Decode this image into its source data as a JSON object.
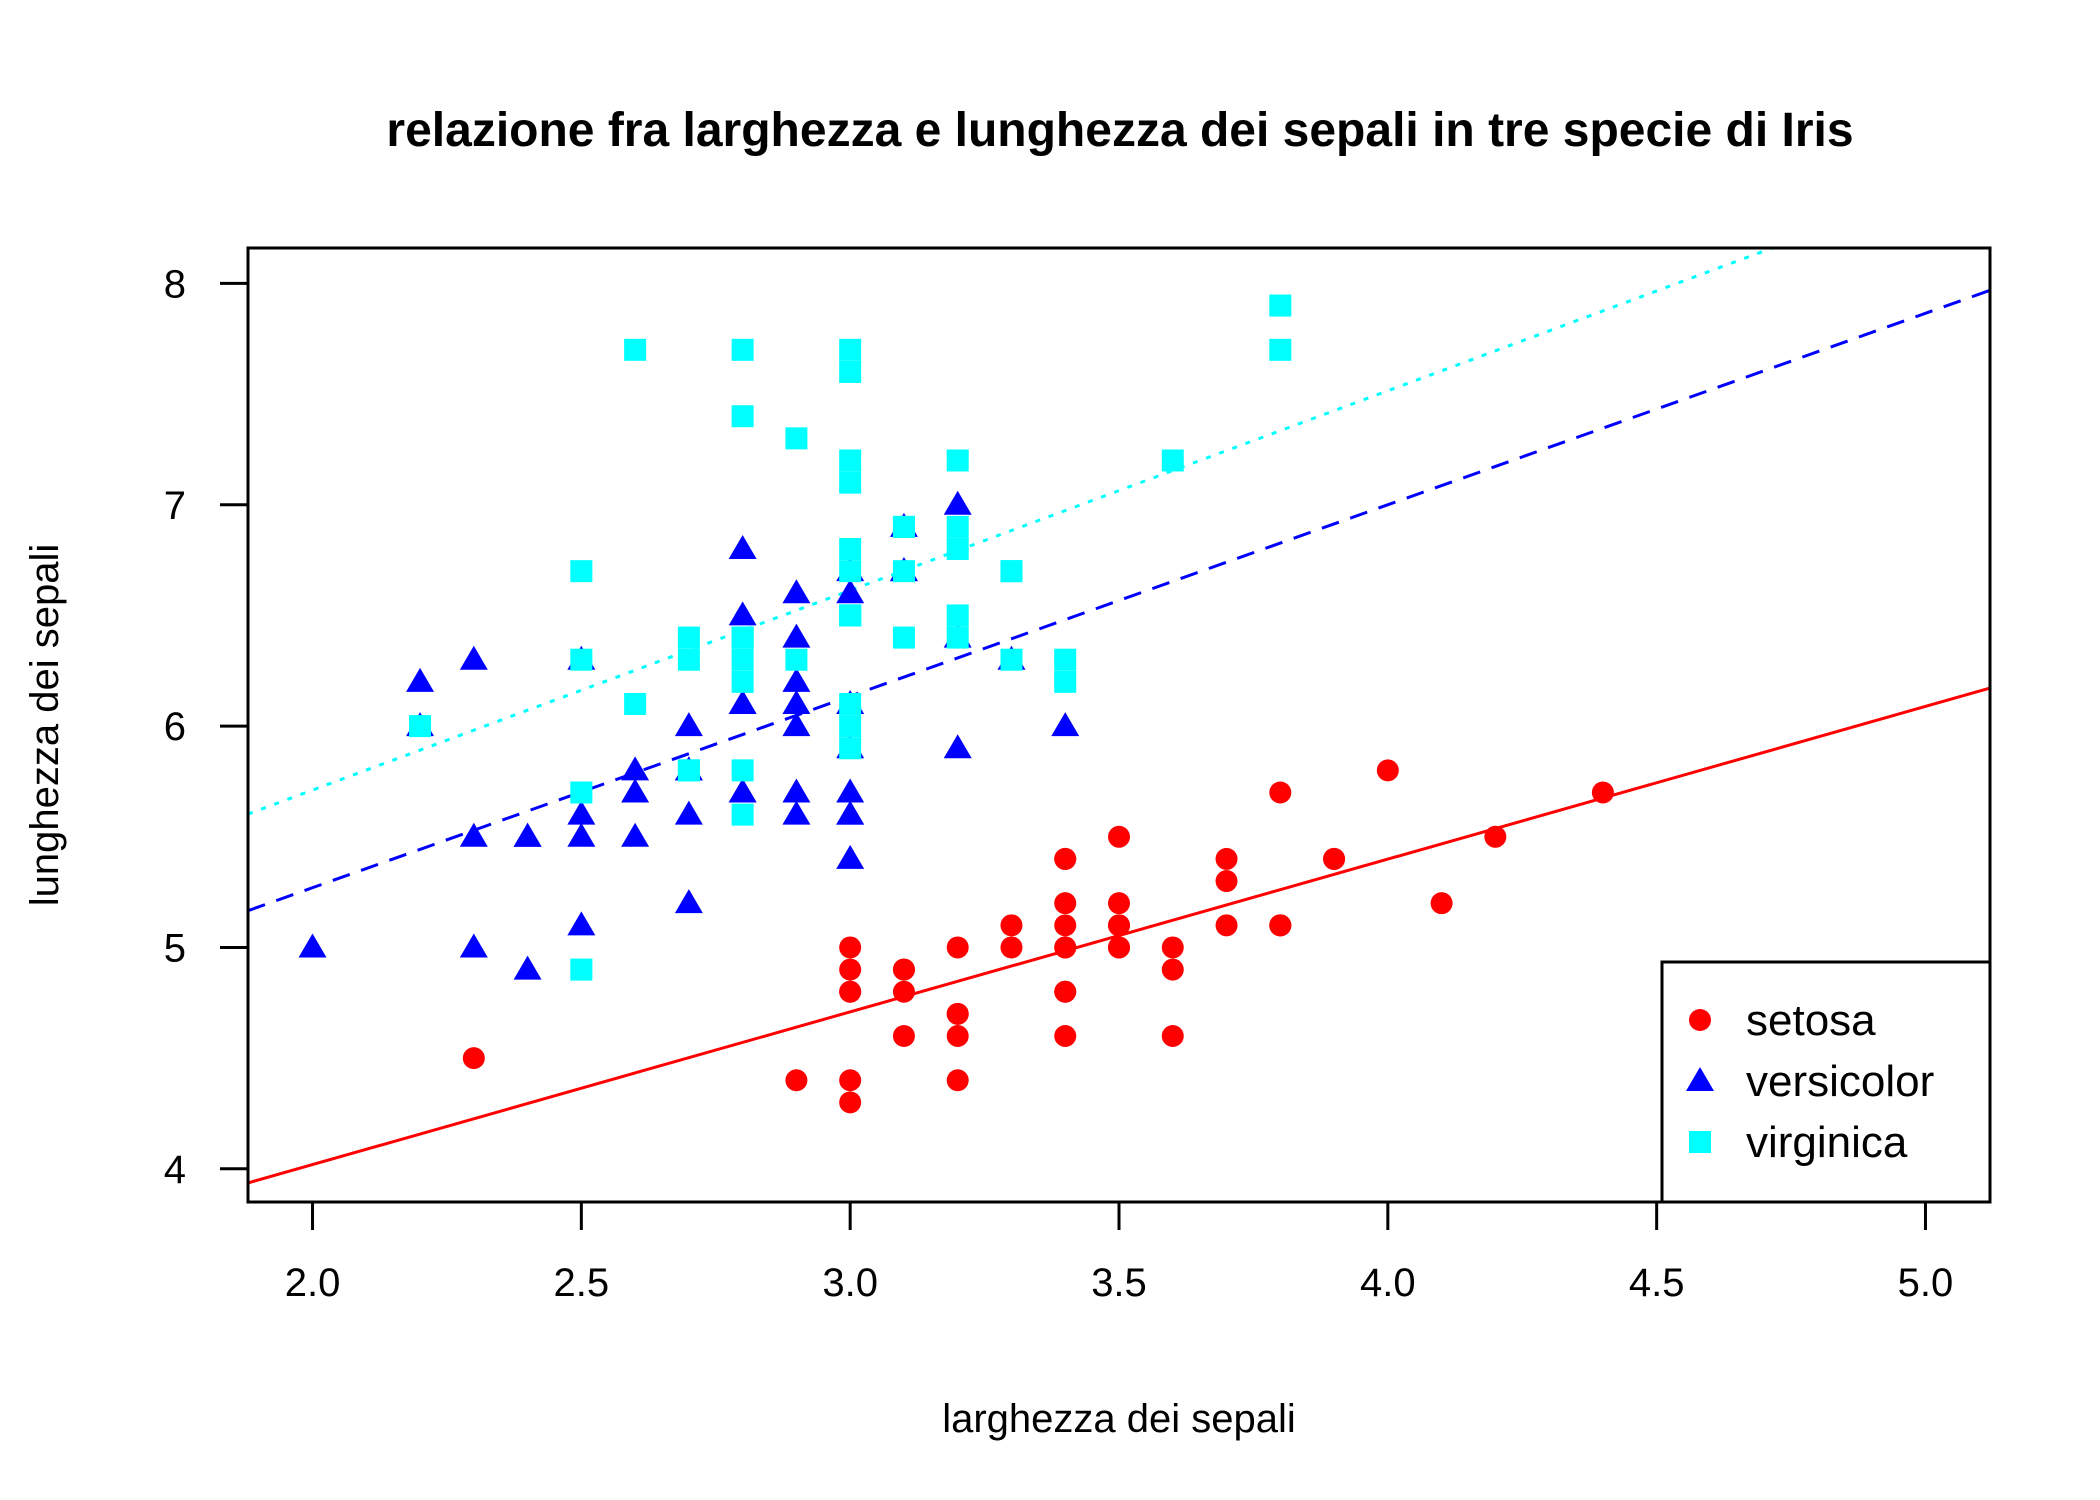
{
  "chart_data": {
    "type": "scatter",
    "title": "relazione fra larghezza e lunghezza dei sepali in tre specie di Iris",
    "xlabel": "larghezza dei sepali",
    "ylabel": "lunghezza dei sepali",
    "xlim": [
      1.88,
      5.12
    ],
    "ylim": [
      3.85,
      8.16
    ],
    "x_ticks": [
      "2.0",
      "2.5",
      "3.0",
      "3.5",
      "4.0",
      "4.5",
      "5.0"
    ],
    "y_ticks": [
      "4",
      "5",
      "6",
      "7",
      "8"
    ],
    "legend_position": "bottom-right",
    "series": [
      {
        "name": "setosa",
        "color": "#ff0000",
        "marker": "circle",
        "points": [
          [
            3.5,
            5.1
          ],
          [
            3.0,
            4.9
          ],
          [
            3.2,
            4.7
          ],
          [
            3.1,
            4.6
          ],
          [
            3.6,
            5.0
          ],
          [
            3.9,
            5.4
          ],
          [
            3.4,
            4.6
          ],
          [
            3.4,
            5.0
          ],
          [
            2.9,
            4.4
          ],
          [
            3.1,
            4.9
          ],
          [
            3.7,
            5.4
          ],
          [
            3.4,
            4.8
          ],
          [
            3.0,
            4.8
          ],
          [
            3.0,
            4.3
          ],
          [
            4.0,
            5.8
          ],
          [
            4.4,
            5.7
          ],
          [
            3.9,
            5.4
          ],
          [
            3.5,
            5.1
          ],
          [
            3.8,
            5.7
          ],
          [
            3.8,
            5.1
          ],
          [
            3.4,
            5.4
          ],
          [
            3.7,
            5.1
          ],
          [
            3.6,
            4.6
          ],
          [
            3.3,
            5.1
          ],
          [
            3.4,
            4.8
          ],
          [
            3.0,
            5.0
          ],
          [
            3.4,
            5.0
          ],
          [
            3.5,
            5.2
          ],
          [
            3.4,
            5.2
          ],
          [
            3.2,
            4.7
          ],
          [
            3.1,
            4.8
          ],
          [
            3.4,
            5.4
          ],
          [
            4.1,
            5.2
          ],
          [
            4.2,
            5.5
          ],
          [
            3.1,
            4.9
          ],
          [
            3.2,
            5.0
          ],
          [
            3.5,
            5.5
          ],
          [
            3.6,
            4.9
          ],
          [
            3.0,
            4.4
          ],
          [
            3.4,
            5.1
          ],
          [
            3.5,
            5.0
          ],
          [
            2.3,
            4.5
          ],
          [
            3.2,
            4.4
          ],
          [
            3.5,
            5.0
          ],
          [
            3.8,
            5.1
          ],
          [
            3.0,
            4.8
          ],
          [
            3.8,
            5.1
          ],
          [
            3.2,
            4.6
          ],
          [
            3.7,
            5.3
          ],
          [
            3.3,
            5.0
          ]
        ],
        "regression": {
          "intercept": 2.639,
          "slope": 0.69,
          "style": "solid"
        }
      },
      {
        "name": "versicolor",
        "color": "#0000ff",
        "marker": "triangle",
        "points": [
          [
            3.2,
            7.0
          ],
          [
            3.2,
            6.4
          ],
          [
            3.1,
            6.9
          ],
          [
            2.3,
            5.5
          ],
          [
            2.8,
            6.5
          ],
          [
            2.8,
            5.7
          ],
          [
            3.3,
            6.3
          ],
          [
            2.4,
            4.9
          ],
          [
            2.9,
            6.6
          ],
          [
            2.7,
            5.2
          ],
          [
            2.0,
            5.0
          ],
          [
            3.0,
            5.9
          ],
          [
            2.2,
            6.0
          ],
          [
            2.9,
            6.1
          ],
          [
            2.9,
            5.6
          ],
          [
            3.1,
            6.7
          ],
          [
            3.0,
            5.6
          ],
          [
            2.7,
            5.8
          ],
          [
            2.2,
            6.2
          ],
          [
            2.5,
            5.6
          ],
          [
            3.2,
            5.9
          ],
          [
            2.8,
            6.1
          ],
          [
            2.5,
            6.3
          ],
          [
            2.8,
            6.1
          ],
          [
            2.9,
            6.4
          ],
          [
            3.0,
            6.6
          ],
          [
            2.8,
            6.8
          ],
          [
            3.0,
            6.7
          ],
          [
            2.9,
            6.0
          ],
          [
            2.6,
            5.7
          ],
          [
            2.4,
            5.5
          ],
          [
            2.4,
            5.5
          ],
          [
            2.7,
            5.8
          ],
          [
            2.7,
            6.0
          ],
          [
            3.0,
            5.4
          ],
          [
            3.4,
            6.0
          ],
          [
            3.1,
            6.7
          ],
          [
            2.3,
            6.3
          ],
          [
            3.0,
            5.6
          ],
          [
            2.5,
            5.5
          ],
          [
            2.6,
            5.5
          ],
          [
            3.0,
            6.1
          ],
          [
            2.6,
            5.8
          ],
          [
            2.3,
            5.0
          ],
          [
            2.7,
            5.6
          ],
          [
            3.0,
            5.7
          ],
          [
            2.9,
            5.7
          ],
          [
            2.9,
            6.2
          ],
          [
            2.5,
            5.1
          ],
          [
            2.8,
            5.7
          ]
        ],
        "regression": {
          "intercept": 3.54,
          "slope": 0.865,
          "style": "dashed"
        }
      },
      {
        "name": "virginica",
        "color": "#00ffff",
        "marker": "square",
        "points": [
          [
            3.3,
            6.3
          ],
          [
            2.7,
            5.8
          ],
          [
            3.0,
            7.1
          ],
          [
            2.9,
            6.3
          ],
          [
            3.0,
            6.5
          ],
          [
            3.0,
            7.6
          ],
          [
            2.5,
            4.9
          ],
          [
            2.9,
            7.3
          ],
          [
            2.5,
            6.7
          ],
          [
            3.6,
            7.2
          ],
          [
            3.2,
            6.5
          ],
          [
            2.7,
            6.4
          ],
          [
            3.0,
            6.8
          ],
          [
            2.5,
            5.7
          ],
          [
            2.8,
            5.8
          ],
          [
            3.2,
            6.4
          ],
          [
            3.0,
            6.5
          ],
          [
            3.8,
            7.7
          ],
          [
            2.6,
            7.7
          ],
          [
            2.2,
            6.0
          ],
          [
            3.2,
            6.9
          ],
          [
            2.8,
            5.6
          ],
          [
            2.8,
            7.7
          ],
          [
            2.7,
            6.3
          ],
          [
            3.3,
            6.7
          ],
          [
            3.2,
            7.2
          ],
          [
            2.8,
            6.2
          ],
          [
            3.0,
            6.1
          ],
          [
            2.8,
            6.4
          ],
          [
            3.0,
            7.2
          ],
          [
            2.8,
            7.4
          ],
          [
            3.8,
            7.9
          ],
          [
            2.8,
            6.4
          ],
          [
            2.8,
            6.3
          ],
          [
            2.6,
            6.1
          ],
          [
            3.0,
            7.7
          ],
          [
            3.4,
            6.3
          ],
          [
            3.1,
            6.4
          ],
          [
            3.0,
            6.0
          ],
          [
            3.1,
            6.9
          ],
          [
            3.1,
            6.7
          ],
          [
            3.1,
            6.9
          ],
          [
            2.7,
            5.8
          ],
          [
            3.2,
            6.8
          ],
          [
            3.3,
            6.7
          ],
          [
            3.0,
            6.7
          ],
          [
            2.5,
            6.3
          ],
          [
            3.0,
            6.5
          ],
          [
            3.4,
            6.2
          ],
          [
            3.0,
            5.9
          ]
        ],
        "regression": {
          "intercept": 3.907,
          "slope": 0.902,
          "style": "dotted"
        }
      }
    ]
  }
}
